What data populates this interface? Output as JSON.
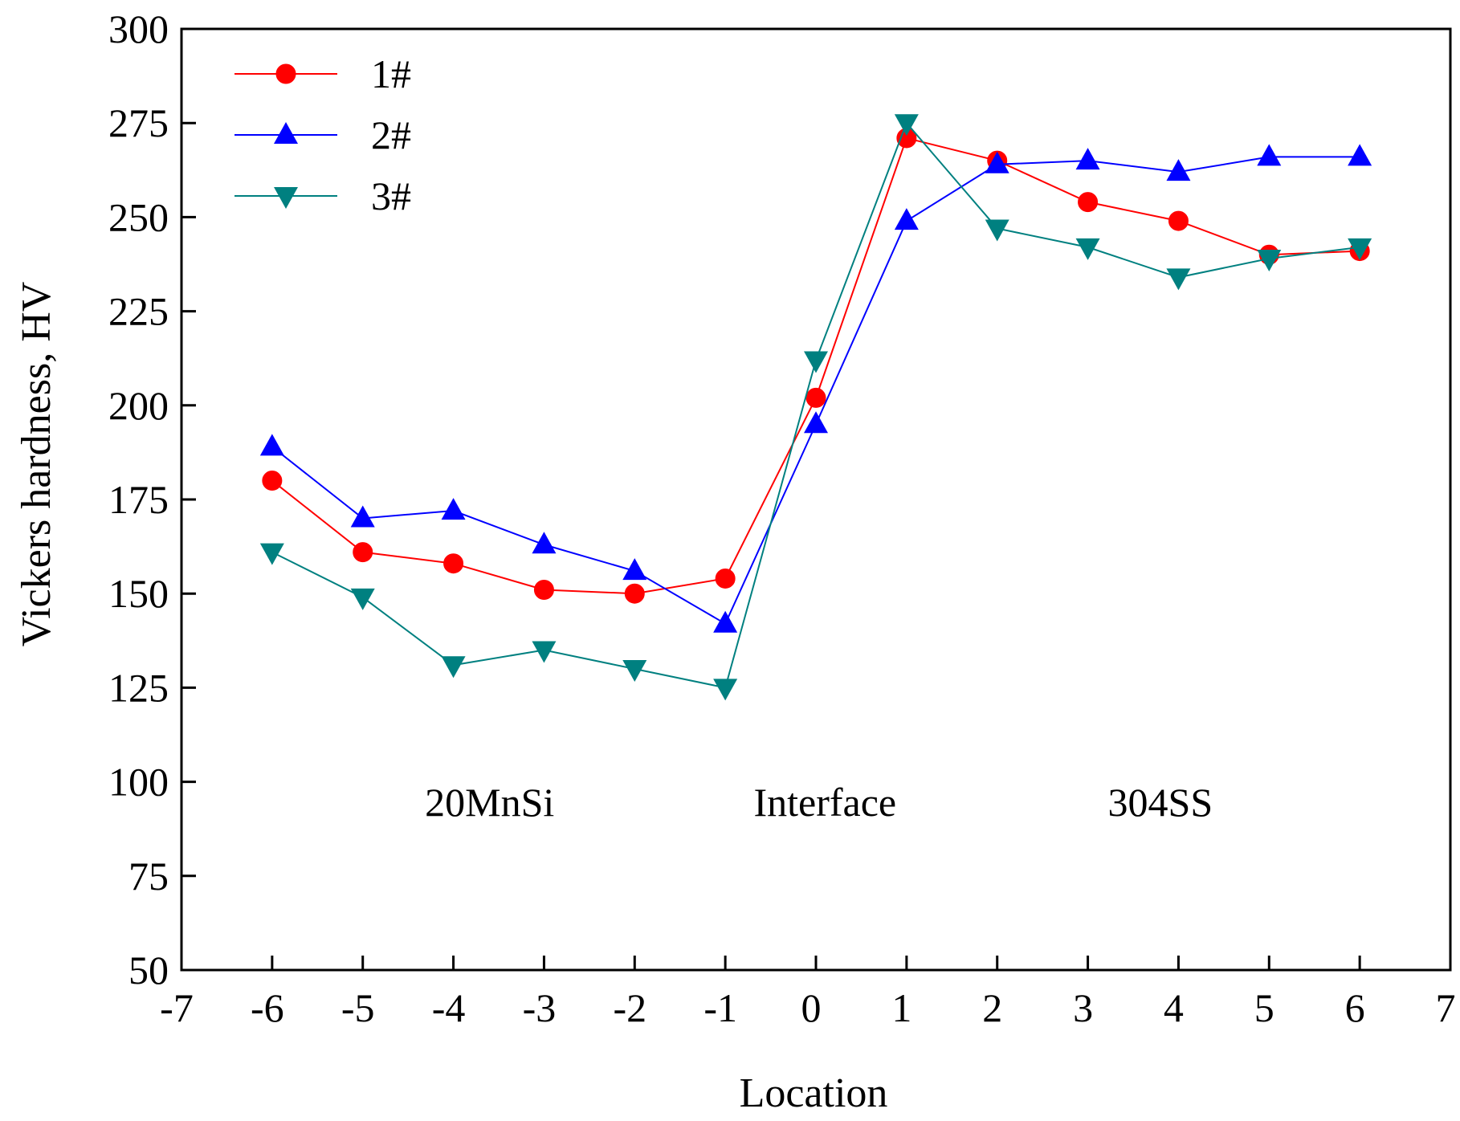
{
  "chart_data": {
    "type": "line",
    "title": "",
    "xlabel": "Location",
    "ylabel": "Vickers hardness, HV",
    "xlim": [
      -7,
      7
    ],
    "ylim": [
      50,
      300
    ],
    "x_ticks": [
      -7,
      -6,
      -5,
      -4,
      -3,
      -2,
      -1,
      0,
      1,
      2,
      3,
      4,
      5,
      6,
      7
    ],
    "y_ticks": [
      50,
      75,
      100,
      125,
      150,
      175,
      200,
      225,
      250,
      275,
      300
    ],
    "grid": false,
    "legend_position": "top-left",
    "x": [
      -6,
      -5,
      -4,
      -3,
      -2,
      -1,
      0,
      1,
      2,
      3,
      4,
      5,
      6
    ],
    "series": [
      {
        "name": "1#",
        "color": "#ff0000",
        "marker": "circle",
        "values": [
          180,
          161,
          158,
          151,
          150,
          154,
          202,
          271,
          265,
          254,
          249,
          240,
          241
        ]
      },
      {
        "name": "2#",
        "color": "#0000ff",
        "marker": "triangle-up",
        "values": [
          189,
          170,
          172,
          163,
          156,
          142,
          195,
          249,
          264,
          265,
          262,
          266,
          266
        ]
      },
      {
        "name": "3#",
        "color": "#008080",
        "marker": "triangle-down",
        "values": [
          161,
          149,
          131,
          135,
          130,
          125,
          212,
          275,
          247,
          242,
          234,
          239,
          242
        ]
      }
    ],
    "annotations": [
      {
        "text": "20MnSi",
        "x": -3.6,
        "y": 91
      },
      {
        "text": "Interface",
        "x": 0.1,
        "y": 91
      },
      {
        "text": "304SS",
        "x": 3.8,
        "y": 91
      }
    ]
  }
}
